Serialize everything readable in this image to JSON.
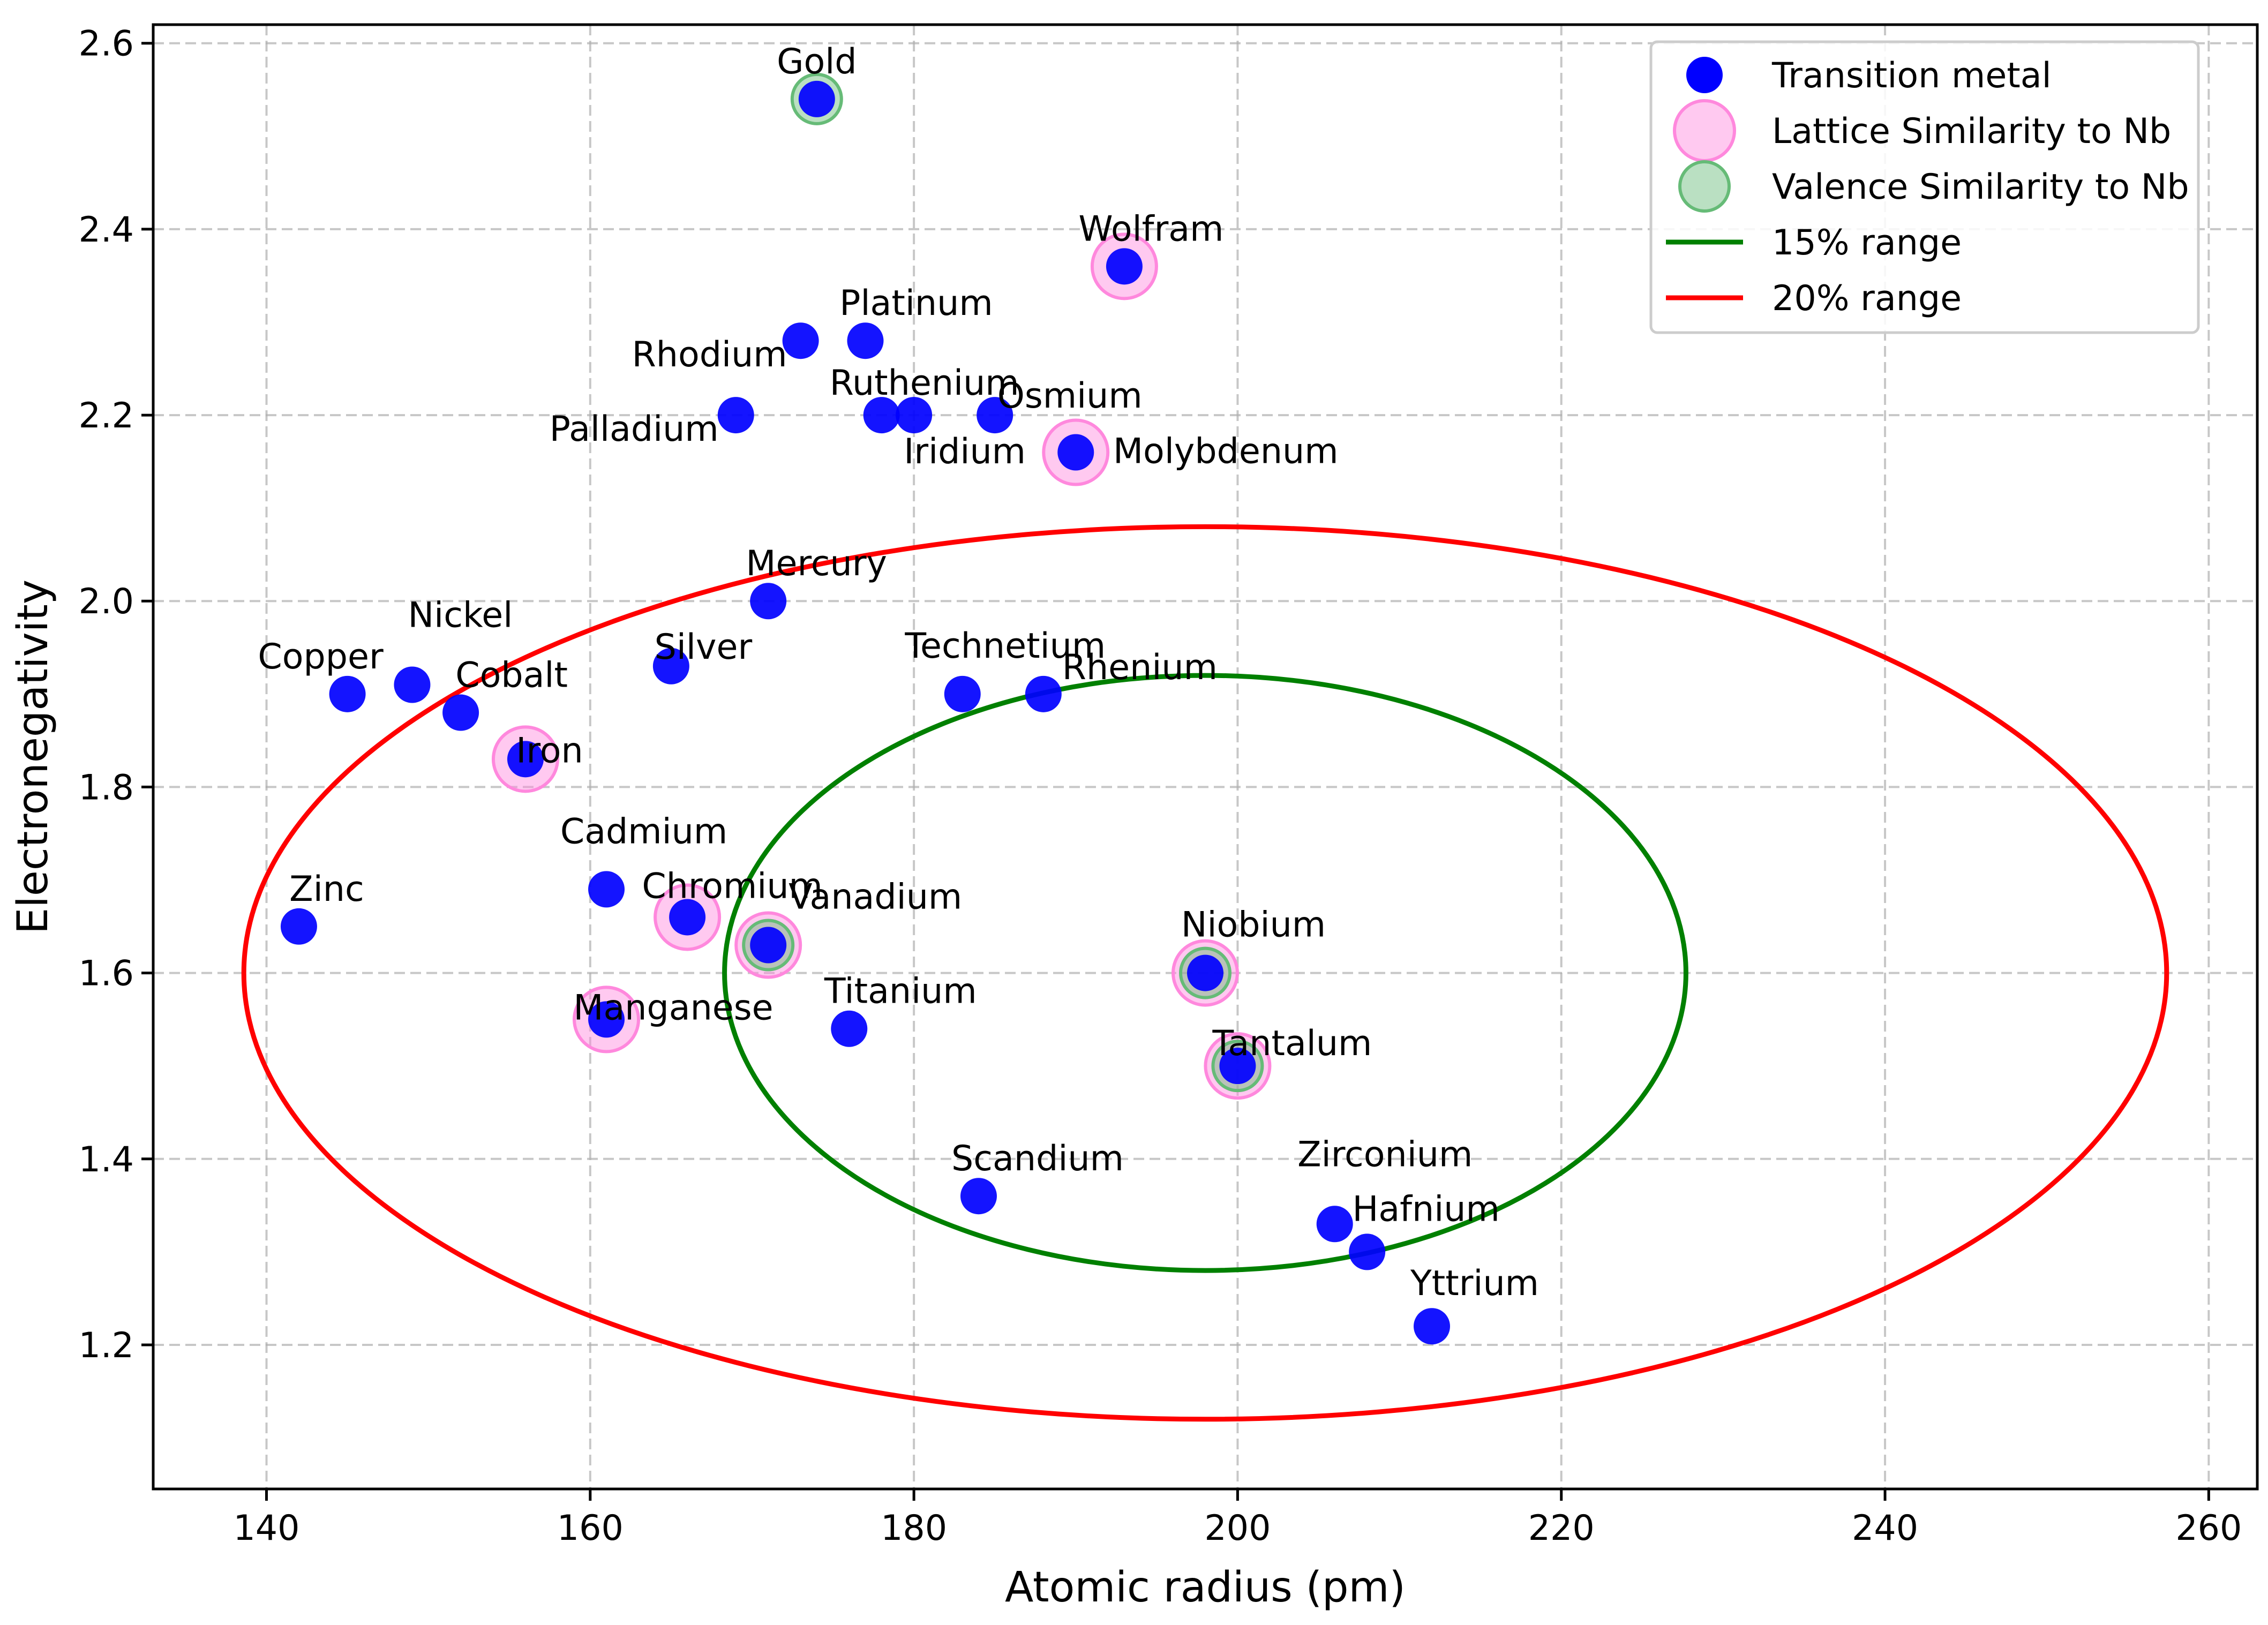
{
  "chart_data": {
    "type": "scatter",
    "title": "",
    "xlabel": "Atomic radius (pm)",
    "ylabel": "Electronegativity",
    "xlim": [
      133,
      263
    ],
    "ylim": [
      1.045,
      2.62
    ],
    "xticks": [
      140,
      160,
      180,
      200,
      220,
      240,
      260
    ],
    "yticks": [
      1.2,
      1.4,
      1.6,
      1.8,
      2.0,
      2.2,
      2.4,
      2.6
    ],
    "xtick_labels": [
      "140",
      "160",
      "180",
      "200",
      "220",
      "240",
      "260"
    ],
    "ytick_labels": [
      "1.2",
      "1.4",
      "1.6",
      "1.8",
      "2.0",
      "2.2",
      "2.4",
      "2.6"
    ],
    "grid": true,
    "legend_position": "upper right",
    "colors": {
      "transition": "#0000ff",
      "lattice": "#ff88dd",
      "valence": "#66bb77",
      "range15": "#008000",
      "range20": "#ff0000"
    },
    "legend": [
      {
        "key": "transition",
        "label": "Transition metal"
      },
      {
        "key": "lattice",
        "label": "Lattice Similarity to Nb"
      },
      {
        "key": "valence",
        "label": "Valence Similarity to Nb"
      },
      {
        "key": "range15",
        "label": "15% range"
      },
      {
        "key": "range20",
        "label": "20% range"
      }
    ],
    "points": [
      {
        "name": "Scandium",
        "x": 184,
        "y": 1.36,
        "lattice": false,
        "valence": false
      },
      {
        "name": "Titanium",
        "x": 176,
        "y": 1.54,
        "lattice": false,
        "valence": false
      },
      {
        "name": "Vanadium",
        "x": 171,
        "y": 1.63,
        "lattice": true,
        "valence": true
      },
      {
        "name": "Chromium",
        "x": 166,
        "y": 1.66,
        "lattice": true,
        "valence": false
      },
      {
        "name": "Manganese",
        "x": 161,
        "y": 1.55,
        "lattice": true,
        "valence": false
      },
      {
        "name": "Iron",
        "x": 156,
        "y": 1.83,
        "lattice": true,
        "valence": false
      },
      {
        "name": "Cobalt",
        "x": 152,
        "y": 1.88,
        "lattice": false,
        "valence": false
      },
      {
        "name": "Nickel",
        "x": 149,
        "y": 1.91,
        "lattice": false,
        "valence": false
      },
      {
        "name": "Copper",
        "x": 145,
        "y": 1.9,
        "lattice": false,
        "valence": false
      },
      {
        "name": "Zinc",
        "x": 142,
        "y": 1.65,
        "lattice": false,
        "valence": false
      },
      {
        "name": "Yttrium",
        "x": 212,
        "y": 1.22,
        "lattice": false,
        "valence": false
      },
      {
        "name": "Zirconium",
        "x": 206,
        "y": 1.33,
        "lattice": false,
        "valence": false
      },
      {
        "name": "Niobium",
        "x": 198,
        "y": 1.6,
        "lattice": true,
        "valence": true
      },
      {
        "name": "Molybdenum",
        "x": 190,
        "y": 2.16,
        "lattice": true,
        "valence": false
      },
      {
        "name": "Technetium",
        "x": 183,
        "y": 1.9,
        "lattice": false,
        "valence": false
      },
      {
        "name": "Ruthenium",
        "x": 178,
        "y": 2.2,
        "lattice": false,
        "valence": false
      },
      {
        "name": "Rhodium",
        "x": 173,
        "y": 2.28,
        "lattice": false,
        "valence": false
      },
      {
        "name": "Palladium",
        "x": 169,
        "y": 2.2,
        "lattice": false,
        "valence": false
      },
      {
        "name": "Silver",
        "x": 165,
        "y": 1.93,
        "lattice": false,
        "valence": false
      },
      {
        "name": "Cadmium",
        "x": 161,
        "y": 1.69,
        "lattice": false,
        "valence": false
      },
      {
        "name": "Hafnium",
        "x": 208,
        "y": 1.3,
        "lattice": false,
        "valence": false
      },
      {
        "name": "Tantalum",
        "x": 200,
        "y": 1.5,
        "lattice": true,
        "valence": true
      },
      {
        "name": "Wolfram",
        "x": 193,
        "y": 2.36,
        "lattice": true,
        "valence": false
      },
      {
        "name": "Rhenium",
        "x": 188,
        "y": 1.9,
        "lattice": false,
        "valence": false
      },
      {
        "name": "Osmium",
        "x": 185,
        "y": 2.2,
        "lattice": false,
        "valence": false
      },
      {
        "name": "Iridium",
        "x": 180,
        "y": 2.2,
        "lattice": false,
        "valence": false
      },
      {
        "name": "Platinum",
        "x": 177,
        "y": 2.28,
        "lattice": false,
        "valence": false
      },
      {
        "name": "Gold",
        "x": 174,
        "y": 2.54,
        "lattice": false,
        "valence": true
      },
      {
        "name": "Mercury",
        "x": 171,
        "y": 2.0,
        "lattice": false,
        "valence": false
      }
    ],
    "ranges": [
      {
        "key": "range15",
        "label": "15% range",
        "center": [
          198,
          1.6
        ],
        "rx": 29.7,
        "ry": 0.32
      },
      {
        "key": "range20",
        "label": "20% range",
        "center": [
          198,
          1.6
        ],
        "rx": 59.4,
        "ry": 0.48
      }
    ]
  }
}
